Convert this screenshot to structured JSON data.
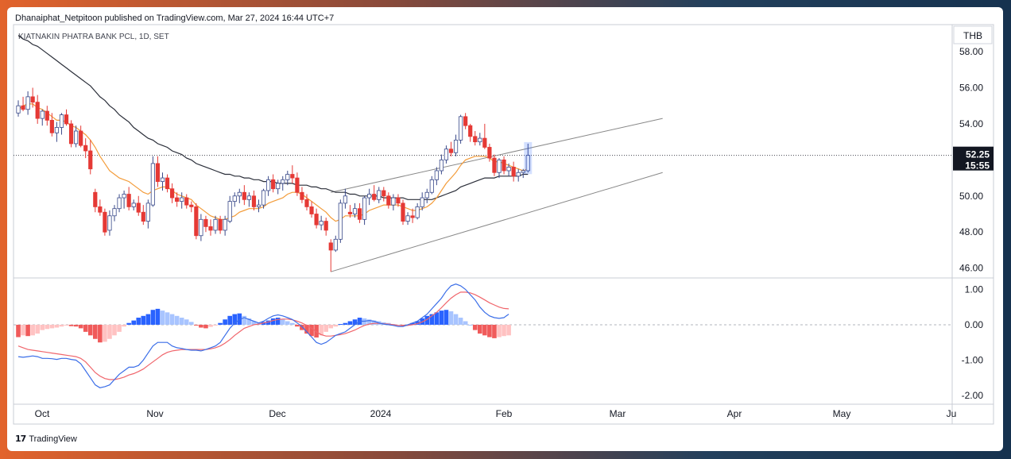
{
  "publisher_line": "Dhanaiphat_Netpitoon published on TradingView.com, Mar 27, 2024 16:44 UTC+7",
  "footer": {
    "brand": "TradingView",
    "icon": "tradingview-logo-icon"
  },
  "chart_data": {
    "type": "candlestick",
    "symbol_label": "KIATNAKIN PHATRA BANK PCL, 1D, SET",
    "currency": "THB",
    "price_axis": {
      "ticks": [
        "58.00",
        "56.00",
        "54.00",
        "52.00",
        "50.00",
        "48.00",
        "46.00"
      ],
      "ylim": [
        45.5,
        59.5
      ]
    },
    "current_price": {
      "value": "52.25",
      "time": "15:55"
    },
    "time_axis": {
      "labels": [
        "Oct",
        "Nov",
        "Dec",
        "2024",
        "Feb",
        "Mar",
        "Apr",
        "May",
        "Ju"
      ]
    },
    "candles_ohlc": [
      [
        54.6,
        55.3,
        54.4,
        55.0
      ],
      [
        55.0,
        55.5,
        54.7,
        54.8
      ],
      [
        54.8,
        55.8,
        54.5,
        55.5
      ],
      [
        55.5,
        56.0,
        54.9,
        55.2
      ],
      [
        55.2,
        55.6,
        54.0,
        54.3
      ],
      [
        54.3,
        54.8,
        53.9,
        54.7
      ],
      [
        54.7,
        55.0,
        53.9,
        54.2
      ],
      [
        54.2,
        54.6,
        53.3,
        53.5
      ],
      [
        53.5,
        54.1,
        53.0,
        53.8
      ],
      [
        53.8,
        54.6,
        53.4,
        54.5
      ],
      [
        54.5,
        54.8,
        53.9,
        54.0
      ],
      [
        54.0,
        54.2,
        52.7,
        52.9
      ],
      [
        52.9,
        53.9,
        52.7,
        53.6
      ],
      [
        53.6,
        53.9,
        52.7,
        52.8
      ],
      [
        52.8,
        53.2,
        52.1,
        52.5
      ],
      [
        52.5,
        53.1,
        51.2,
        51.5
      ],
      [
        50.2,
        50.4,
        49.1,
        49.4
      ],
      [
        49.4,
        49.8,
        48.9,
        49.1
      ],
      [
        49.1,
        49.3,
        47.8,
        48.0
      ],
      [
        48.1,
        49.2,
        47.8,
        48.9
      ],
      [
        48.9,
        49.5,
        48.6,
        49.3
      ],
      [
        49.3,
        50.1,
        49.1,
        49.9
      ],
      [
        49.9,
        50.3,
        49.3,
        50.1
      ],
      [
        50.1,
        50.5,
        49.2,
        49.4
      ],
      [
        49.4,
        49.8,
        49.2,
        49.6
      ],
      [
        49.6,
        50.0,
        48.9,
        49.1
      ],
      [
        49.1,
        49.5,
        48.4,
        48.6
      ],
      [
        48.6,
        49.8,
        48.2,
        49.6
      ],
      [
        49.5,
        52.2,
        49.4,
        51.8
      ],
      [
        51.8,
        52.2,
        50.5,
        50.8
      ],
      [
        50.8,
        51.3,
        50.3,
        51.0
      ],
      [
        51.0,
        51.2,
        50.2,
        50.4
      ],
      [
        50.4,
        50.7,
        49.6,
        49.9
      ],
      [
        49.9,
        50.2,
        49.4,
        49.7
      ],
      [
        49.7,
        50.2,
        49.3,
        49.9
      ],
      [
        49.9,
        50.1,
        49.3,
        49.5
      ],
      [
        49.5,
        49.7,
        49.1,
        49.4
      ],
      [
        49.4,
        49.6,
        47.6,
        47.8
      ],
      [
        47.8,
        49.0,
        47.5,
        48.7
      ],
      [
        48.7,
        48.9,
        48.0,
        48.3
      ],
      [
        48.3,
        48.7,
        47.8,
        48.1
      ],
      [
        48.1,
        48.9,
        47.9,
        48.7
      ],
      [
        48.7,
        48.9,
        47.9,
        48.1
      ],
      [
        48.1,
        48.9,
        47.8,
        48.7
      ],
      [
        48.6,
        50.0,
        48.5,
        49.7
      ],
      [
        49.7,
        50.2,
        49.4,
        50.0
      ],
      [
        50.0,
        50.4,
        49.6,
        50.2
      ],
      [
        50.2,
        50.6,
        49.5,
        49.8
      ],
      [
        49.8,
        50.2,
        49.4,
        50.0
      ],
      [
        50.0,
        50.3,
        49.2,
        49.4
      ],
      [
        49.4,
        49.8,
        49.1,
        49.5
      ],
      [
        49.5,
        50.4,
        49.3,
        50.3
      ],
      [
        50.3,
        51.1,
        50.0,
        50.9
      ],
      [
        50.9,
        51.2,
        50.2,
        50.4
      ],
      [
        50.4,
        50.9,
        50.1,
        50.7
      ],
      [
        50.7,
        51.1,
        50.3,
        50.9
      ],
      [
        50.9,
        51.4,
        50.6,
        51.2
      ],
      [
        51.2,
        51.7,
        50.7,
        51.0
      ],
      [
        51.0,
        51.3,
        50.0,
        50.2
      ],
      [
        50.2,
        50.5,
        49.6,
        49.8
      ],
      [
        49.8,
        50.1,
        49.2,
        49.4
      ],
      [
        49.4,
        49.7,
        48.8,
        49.0
      ],
      [
        49.0,
        49.3,
        48.2,
        48.4
      ],
      [
        48.4,
        48.9,
        48.1,
        48.6
      ],
      [
        48.6,
        48.8,
        47.8,
        48.1
      ],
      [
        47.4,
        47.6,
        45.8,
        47.0
      ],
      [
        47.0,
        47.8,
        46.9,
        47.6
      ],
      [
        47.6,
        49.8,
        47.4,
        49.6
      ],
      [
        49.6,
        50.4,
        49.3,
        50.0
      ],
      [
        49.1,
        49.5,
        48.8,
        49.0
      ],
      [
        49.0,
        49.6,
        48.8,
        49.3
      ],
      [
        49.3,
        49.6,
        48.5,
        48.7
      ],
      [
        48.7,
        50.0,
        48.4,
        49.9
      ],
      [
        49.9,
        50.4,
        49.5,
        50.1
      ],
      [
        50.1,
        50.6,
        49.7,
        49.8
      ],
      [
        49.8,
        50.5,
        49.6,
        50.3
      ],
      [
        50.3,
        50.5,
        49.7,
        50.0
      ],
      [
        50.0,
        50.2,
        49.3,
        49.5
      ],
      [
        49.5,
        50.1,
        49.2,
        49.9
      ],
      [
        49.9,
        50.1,
        49.4,
        49.6
      ],
      [
        49.6,
        49.8,
        48.4,
        48.6
      ],
      [
        48.6,
        49.1,
        48.4,
        48.9
      ],
      [
        48.9,
        49.3,
        48.5,
        48.8
      ],
      [
        48.8,
        49.6,
        48.7,
        49.4
      ],
      [
        49.4,
        50.2,
        49.2,
        49.9
      ],
      [
        49.9,
        50.4,
        49.6,
        50.2
      ],
      [
        50.2,
        51.1,
        50.1,
        50.9
      ],
      [
        50.9,
        51.6,
        50.6,
        51.4
      ],
      [
        51.4,
        52.3,
        51.2,
        52.0
      ],
      [
        52.0,
        52.8,
        51.8,
        52.6
      ],
      [
        52.6,
        53.0,
        52.2,
        52.4
      ],
      [
        52.4,
        53.4,
        52.2,
        53.1
      ],
      [
        53.1,
        54.5,
        52.9,
        54.4
      ],
      [
        54.4,
        54.6,
        53.7,
        53.9
      ],
      [
        53.9,
        54.0,
        53.0,
        53.3
      ],
      [
        53.3,
        53.6,
        52.8,
        53.0
      ],
      [
        53.0,
        53.5,
        52.8,
        53.2
      ],
      [
        53.2,
        54.0,
        52.6,
        52.7
      ],
      [
        52.7,
        52.9,
        51.9,
        52.1
      ],
      [
        52.1,
        52.3,
        51.1,
        51.3
      ],
      [
        51.3,
        52.1,
        51.0,
        52.0
      ],
      [
        52.0,
        52.2,
        51.2,
        51.4
      ],
      [
        51.4,
        51.8,
        51.1,
        51.6
      ],
      [
        51.6,
        51.9,
        50.8,
        51.1
      ],
      [
        51.1,
        51.5,
        50.8,
        51.3
      ],
      [
        51.3,
        51.5,
        51.0,
        51.4
      ],
      [
        51.4,
        52.9,
        51.3,
        52.25
      ]
    ],
    "overlays": {
      "ema_short": [
        54.8,
        55.0,
        55.1,
        55.1,
        54.9,
        54.8,
        54.6,
        54.4,
        54.2,
        54.2,
        54.1,
        53.9,
        53.8,
        53.6,
        53.4,
        53.1,
        52.7,
        52.2,
        51.8,
        51.4,
        51.2,
        51.0,
        50.9,
        50.8,
        50.6,
        50.4,
        50.2,
        50.1,
        50.3,
        50.4,
        50.5,
        50.5,
        50.3,
        50.1,
        50.0,
        49.9,
        49.8,
        49.5,
        49.3,
        49.1,
        48.9,
        48.8,
        48.7,
        48.7,
        48.8,
        48.9,
        49.1,
        49.2,
        49.3,
        49.3,
        49.3,
        49.4,
        49.6,
        49.7,
        49.8,
        49.9,
        50.1,
        50.2,
        50.2,
        50.1,
        49.9,
        49.7,
        49.5,
        49.3,
        49.1,
        48.8,
        48.6,
        48.7,
        48.9,
        48.9,
        48.9,
        48.9,
        49.0,
        49.2,
        49.3,
        49.4,
        49.5,
        49.5,
        49.5,
        49.5,
        49.4,
        49.3,
        49.2,
        49.2,
        49.3,
        49.4,
        49.6,
        49.9,
        50.3,
        50.7,
        51.0,
        51.3,
        51.7,
        52.0,
        52.1,
        52.2,
        52.2,
        52.2,
        52.1,
        51.9,
        51.9,
        51.8,
        51.7,
        51.6,
        51.5,
        51.4,
        51.5
      ],
      "ema_long": [
        58.9,
        58.7,
        58.6,
        58.4,
        58.3,
        58.1,
        57.9,
        57.7,
        57.5,
        57.3,
        57.1,
        56.9,
        56.7,
        56.5,
        56.3,
        56.1,
        55.8,
        55.5,
        55.3,
        55.0,
        54.8,
        54.5,
        54.3,
        54.1,
        53.8,
        53.6,
        53.4,
        53.2,
        53.1,
        52.9,
        52.8,
        52.7,
        52.5,
        52.4,
        52.3,
        52.1,
        52.0,
        51.8,
        51.7,
        51.6,
        51.5,
        51.4,
        51.3,
        51.2,
        51.2,
        51.1,
        51.1,
        51.0,
        51.0,
        50.9,
        50.9,
        50.8,
        50.8,
        50.8,
        50.7,
        50.7,
        50.7,
        50.7,
        50.6,
        50.6,
        50.6,
        50.5,
        50.5,
        50.4,
        50.4,
        50.3,
        50.2,
        50.2,
        50.2,
        50.1,
        50.1,
        50.0,
        50.0,
        50.0,
        50.0,
        50.0,
        49.9,
        49.9,
        49.9,
        49.9,
        49.9,
        49.8,
        49.8,
        49.8,
        49.8,
        49.8,
        49.8,
        49.9,
        50.0,
        50.1,
        50.2,
        50.3,
        50.5,
        50.6,
        50.7,
        50.8,
        50.9,
        51.0,
        51.0,
        51.0,
        51.1,
        51.1,
        51.1,
        51.1,
        51.1,
        51.2,
        51.2
      ]
    },
    "channel_lines": [
      {
        "from": [
          65,
          45.8
        ],
        "to": [
          134,
          51.3
        ]
      },
      {
        "from": [
          65,
          50.2
        ],
        "to": [
          134,
          54.3
        ]
      }
    ],
    "macd": {
      "axis_ticks": [
        "1.00",
        "0.00",
        "-1.00",
        "-2.00"
      ],
      "ylim": [
        -2.2,
        1.3
      ],
      "histogram": [
        -0.35,
        -0.3,
        -0.32,
        -0.3,
        -0.25,
        -0.15,
        -0.12,
        -0.1,
        -0.08,
        -0.05,
        -0.02,
        -0.04,
        -0.05,
        -0.1,
        -0.2,
        -0.3,
        -0.4,
        -0.5,
        -0.48,
        -0.4,
        -0.3,
        -0.2,
        -0.05,
        0.05,
        0.12,
        0.2,
        0.25,
        0.3,
        0.42,
        0.45,
        0.4,
        0.35,
        0.3,
        0.25,
        0.2,
        0.15,
        0.08,
        -0.02,
        -0.08,
        -0.1,
        -0.06,
        -0.02,
        0.05,
        0.15,
        0.25,
        0.3,
        0.32,
        0.25,
        0.18,
        0.1,
        0.05,
        0.08,
        0.12,
        0.18,
        0.2,
        0.15,
        0.1,
        0.05,
        -0.05,
        -0.15,
        -0.25,
        -0.32,
        -0.36,
        -0.3,
        -0.2,
        -0.1,
        -0.05,
        0.02,
        0.05,
        0.1,
        0.15,
        0.2,
        0.18,
        0.15,
        0.12,
        0.1,
        0.07,
        0.05,
        0.02,
        0.0,
        -0.02,
        0.0,
        0.05,
        0.1,
        0.18,
        0.25,
        0.3,
        0.35,
        0.4,
        0.42,
        0.38,
        0.3,
        0.2,
        0.1,
        0.0,
        -0.15,
        -0.25,
        -0.3,
        -0.35,
        -0.38,
        -0.35,
        -0.32,
        -0.3
      ],
      "macd_line": [
        -0.9,
        -0.92,
        -0.9,
        -0.88,
        -0.9,
        -0.95,
        -0.95,
        -0.96,
        -0.98,
        -0.95,
        -0.95,
        -0.98,
        -1.0,
        -1.1,
        -1.3,
        -1.5,
        -1.7,
        -1.78,
        -1.75,
        -1.7,
        -1.55,
        -1.4,
        -1.3,
        -1.2,
        -1.2,
        -1.15,
        -1.0,
        -0.8,
        -0.6,
        -0.5,
        -0.5,
        -0.5,
        -0.6,
        -0.65,
        -0.67,
        -0.7,
        -0.72,
        -0.72,
        -0.74,
        -0.7,
        -0.65,
        -0.6,
        -0.5,
        -0.3,
        -0.1,
        0.05,
        0.15,
        0.2,
        0.15,
        0.1,
        0.05,
        0.1,
        0.18,
        0.25,
        0.28,
        0.25,
        0.2,
        0.15,
        0.05,
        -0.05,
        -0.2,
        -0.35,
        -0.5,
        -0.55,
        -0.5,
        -0.4,
        -0.3,
        -0.25,
        -0.2,
        -0.1,
        0.0,
        0.1,
        0.1,
        0.12,
        0.1,
        0.05,
        0.02,
        0.0,
        -0.02,
        -0.05,
        -0.05,
        0.0,
        0.05,
        0.1,
        0.2,
        0.3,
        0.45,
        0.6,
        0.75,
        0.95,
        1.1,
        1.15,
        1.1,
        1.0,
        0.85,
        0.7,
        0.5,
        0.35,
        0.25,
        0.2,
        0.18,
        0.2,
        0.3
      ],
      "signal_line": [
        -0.6,
        -0.65,
        -0.7,
        -0.72,
        -0.74,
        -0.76,
        -0.78,
        -0.8,
        -0.82,
        -0.84,
        -0.86,
        -0.88,
        -0.9,
        -0.95,
        -1.05,
        -1.2,
        -1.35,
        -1.45,
        -1.52,
        -1.55,
        -1.55,
        -1.52,
        -1.48,
        -1.42,
        -1.38,
        -1.32,
        -1.25,
        -1.15,
        -1.05,
        -0.95,
        -0.85,
        -0.78,
        -0.74,
        -0.72,
        -0.7,
        -0.7,
        -0.7,
        -0.7,
        -0.7,
        -0.7,
        -0.68,
        -0.65,
        -0.6,
        -0.52,
        -0.42,
        -0.3,
        -0.2,
        -0.1,
        -0.05,
        0.0,
        0.02,
        0.05,
        0.08,
        0.12,
        0.15,
        0.16,
        0.16,
        0.14,
        0.1,
        0.05,
        -0.02,
        -0.1,
        -0.2,
        -0.28,
        -0.32,
        -0.32,
        -0.3,
        -0.28,
        -0.25,
        -0.2,
        -0.15,
        -0.08,
        -0.02,
        0.02,
        0.04,
        0.04,
        0.03,
        0.02,
        0.0,
        -0.02,
        -0.03,
        -0.02,
        0.0,
        0.03,
        0.08,
        0.15,
        0.25,
        0.35,
        0.48,
        0.62,
        0.75,
        0.85,
        0.92,
        0.92,
        0.9,
        0.85,
        0.78,
        0.7,
        0.62,
        0.56,
        0.5,
        0.46,
        0.45
      ]
    }
  }
}
